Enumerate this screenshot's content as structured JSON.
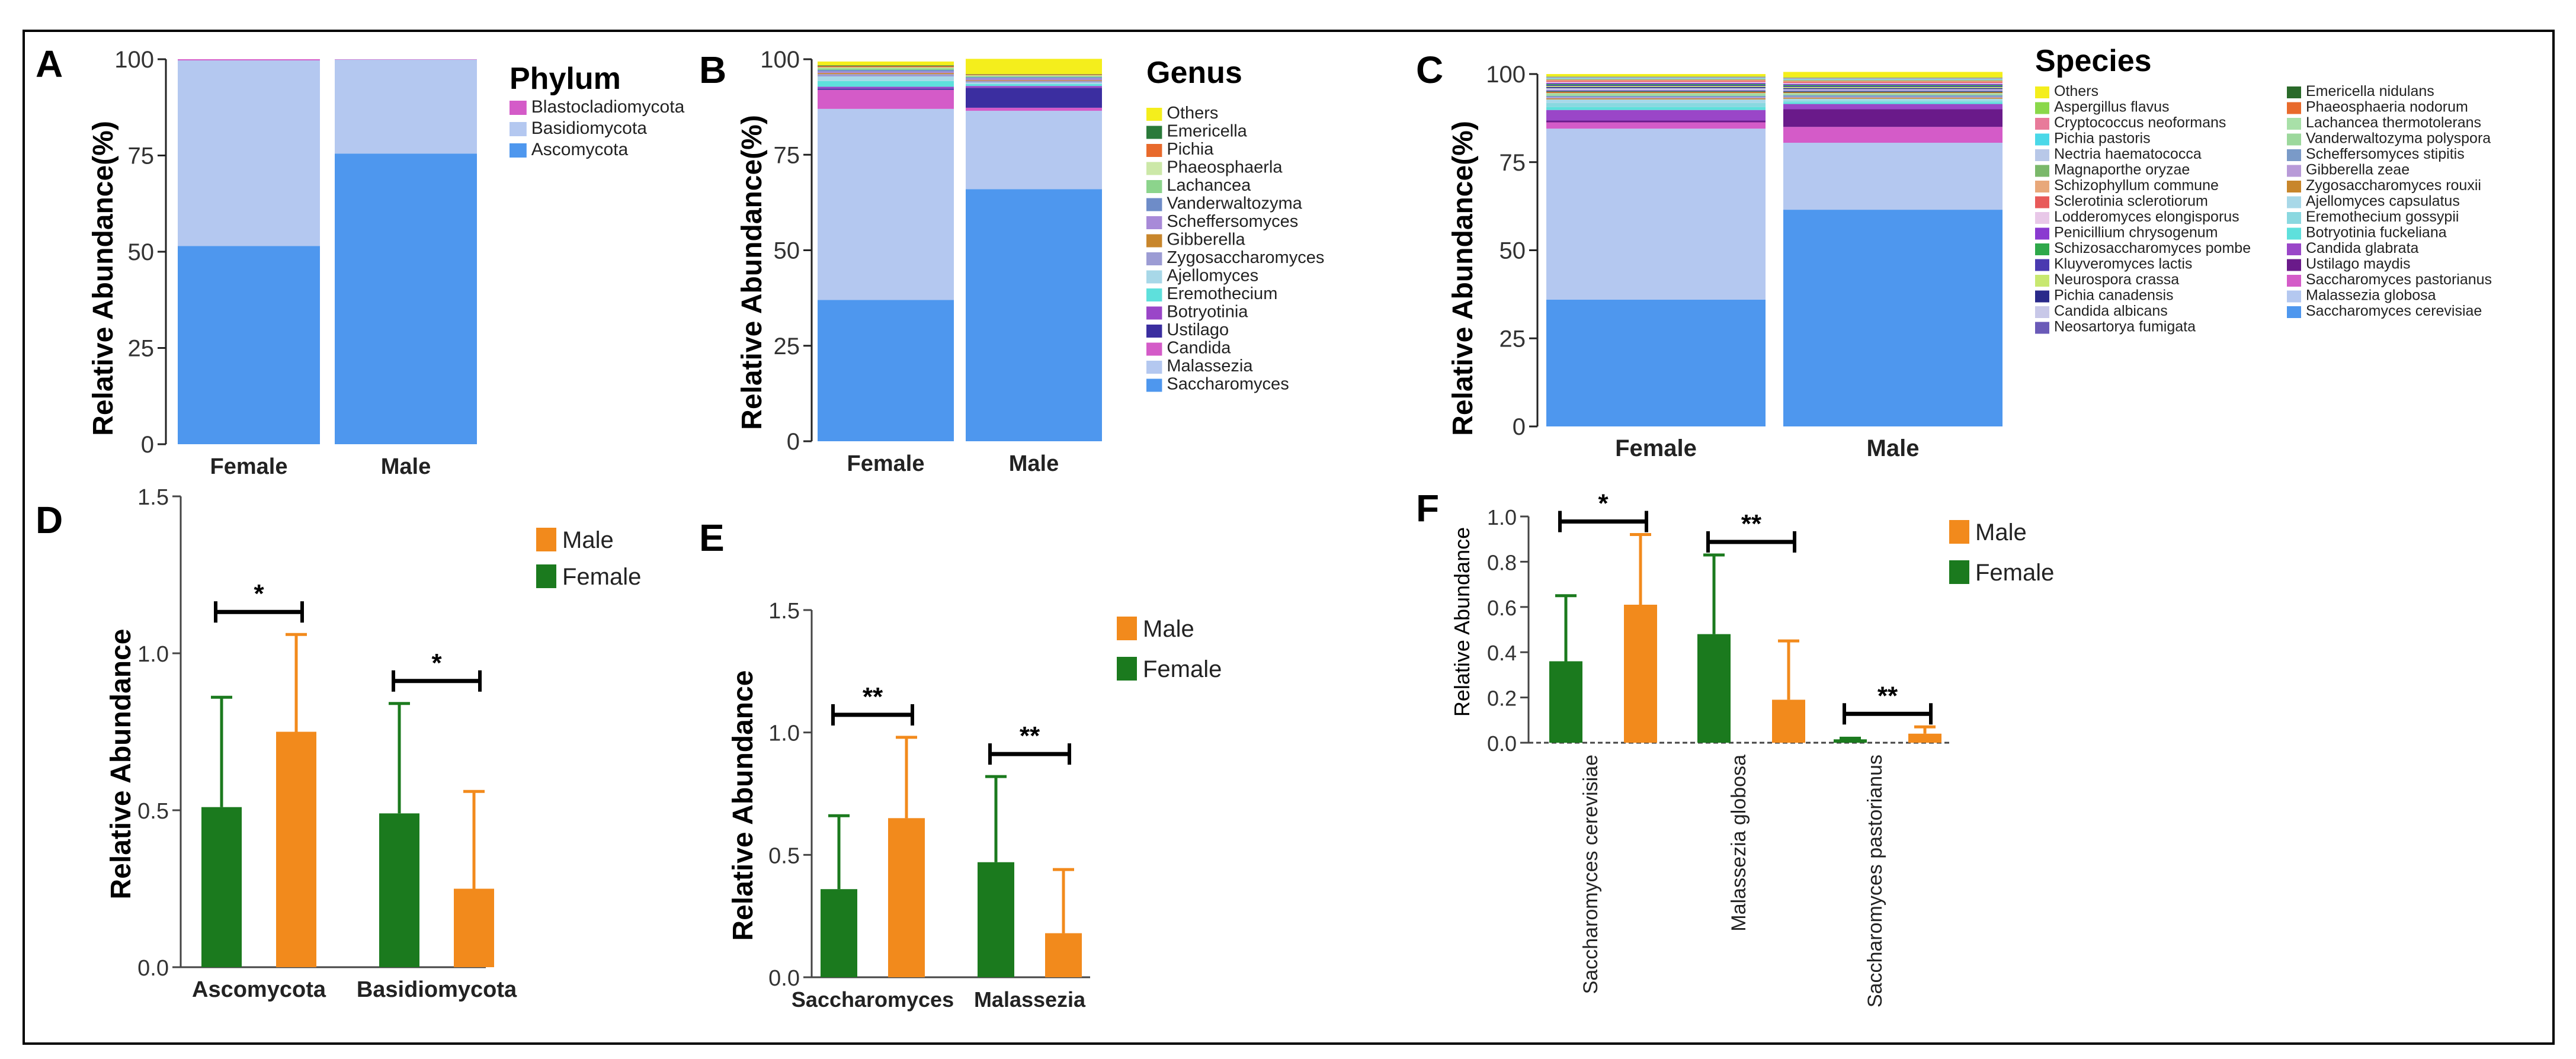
{
  "colors": {
    "female_bar": "#1b7a1e",
    "male_bar": "#f28a1c",
    "axis": "#000000"
  },
  "chart_data": [
    {
      "panel": "A",
      "type": "stacked_bar",
      "title": "Phylum",
      "ylabel": "Relative Abundance(%)",
      "yticks": [
        "0",
        "25",
        "50",
        "75",
        "100"
      ],
      "ylim": [
        0,
        100
      ],
      "categories": [
        "Female",
        "Male"
      ],
      "series": [
        {
          "name": "Ascomycota",
          "color": "#4e97ee",
          "values": [
            51.5,
            75.5
          ]
        },
        {
          "name": "Basidiomycota",
          "color": "#b4c8f0",
          "values": [
            48.2,
            24.4
          ]
        },
        {
          "name": "Blastocladiomycota",
          "color": "#d45bc8",
          "values": [
            0.3,
            0.1
          ]
        }
      ],
      "legend": [
        "Blastocladiomycota",
        "Basidiomycota",
        "Ascomycota"
      ]
    },
    {
      "panel": "B",
      "type": "stacked_bar",
      "title": "Genus",
      "ylabel": "Relative Abundance(%)",
      "yticks": [
        "0",
        "25",
        "50",
        "75",
        "100"
      ],
      "ylim": [
        0,
        100
      ],
      "categories": [
        "Female",
        "Male"
      ],
      "series": [
        {
          "name": "Saccharomyces",
          "color": "#4e97ee",
          "values": [
            37,
            66
          ]
        },
        {
          "name": "Malassezia",
          "color": "#b4c8f0",
          "values": [
            50,
            20.5
          ]
        },
        {
          "name": "Candida",
          "color": "#d45bc8",
          "values": [
            5,
            0.8
          ]
        },
        {
          "name": "Ustilago",
          "color": "#3b2ea0",
          "values": [
            0.3,
            5.2
          ]
        },
        {
          "name": "Botryotinia",
          "color": "#9a46c8",
          "values": [
            0.5,
            0.5
          ]
        },
        {
          "name": "Eremothecium",
          "color": "#5ee0dc",
          "values": [
            1.5,
            0.5
          ]
        },
        {
          "name": "Ajellomyces",
          "color": "#a8d8e8",
          "values": [
            1.2,
            0.4
          ]
        },
        {
          "name": "Zygosaccharomyces",
          "color": "#9c9cd4",
          "values": [
            0.6,
            0.4
          ]
        },
        {
          "name": "Gibberella",
          "color": "#c8862c",
          "values": [
            0.3,
            0.2
          ]
        },
        {
          "name": "Scheffersomyces",
          "color": "#a88ad8",
          "values": [
            0.4,
            0.5
          ]
        },
        {
          "name": "Vanderwaltozyma",
          "color": "#6e8cc8",
          "values": [
            0.4,
            0.3
          ]
        },
        {
          "name": "Lachancea",
          "color": "#8cd48c",
          "values": [
            0.4,
            0.3
          ]
        },
        {
          "name": "Phaeosphaerla",
          "color": "#cce8a8",
          "values": [
            0.3,
            0.2
          ]
        },
        {
          "name": "Pichia",
          "color": "#e86a2c",
          "values": [
            0.3,
            0.2
          ]
        },
        {
          "name": "Emericella",
          "color": "#2a7a3a",
          "values": [
            0.2,
            0.1
          ]
        },
        {
          "name": "Others",
          "color": "#f4ee1c",
          "values": [
            1.0,
            4.0
          ]
        }
      ],
      "legend": [
        "Others",
        "Emericella",
        "Pichia",
        "Phaeosphaerla",
        "Lachancea",
        "Vanderwaltozyma",
        "Scheffersomyces",
        "Gibberella",
        "Zygosaccharomyces",
        "Ajellomyces",
        "Eremothecium",
        "Botryotinia",
        "Ustilago",
        "Candida",
        "Malassezia",
        "Saccharomyces"
      ]
    },
    {
      "panel": "C",
      "type": "stacked_bar",
      "title": "Species",
      "ylabel": "Relative Abundance(%)",
      "yticks": [
        "0",
        "25",
        "50",
        "75",
        "100"
      ],
      "ylim": [
        0,
        100
      ],
      "categories": [
        "Female",
        "Male"
      ],
      "series": [
        {
          "name": "Saccharomyces cerevisiae",
          "color": "#4e97ee",
          "values": [
            36,
            61.5
          ]
        },
        {
          "name": "Malassezia globosa",
          "color": "#b4c8f0",
          "values": [
            48.5,
            19
          ]
        },
        {
          "name": "Saccharomyces pastorianus",
          "color": "#d45bc8",
          "values": [
            1.8,
            4.5
          ]
        },
        {
          "name": "Ustilago maydis",
          "color": "#6a1a8a",
          "values": [
            0.5,
            5
          ]
        },
        {
          "name": "Candida glabrata",
          "color": "#9a46c8",
          "values": [
            3,
            1.5
          ]
        },
        {
          "name": "Botryotinia fuckeliana",
          "color": "#5ee0dc",
          "values": [
            0.8,
            0.5
          ]
        },
        {
          "name": "Eremothecium gossypii",
          "color": "#8ad8e0",
          "values": [
            1.2,
            0.5
          ]
        },
        {
          "name": "Ajellomyces capsulatus",
          "color": "#a8d8e8",
          "values": [
            1.0,
            0.5
          ]
        },
        {
          "name": "Zygosaccharomyces rouxii",
          "color": "#c8862c",
          "values": [
            0.3,
            0.3
          ]
        },
        {
          "name": "Gibberella zeae",
          "color": "#b89ad8",
          "values": [
            0.3,
            0.2
          ]
        },
        {
          "name": "Scheffersomyces stipitis",
          "color": "#7a9ac8",
          "values": [
            0.4,
            0.5
          ]
        },
        {
          "name": "Vanderwaltozyma polyspora",
          "color": "#9cd89c",
          "values": [
            0.4,
            0.3
          ]
        },
        {
          "name": "Lachancea thermotolerans",
          "color": "#a8e0a8",
          "values": [
            0.4,
            0.3
          ]
        },
        {
          "name": "Phaeosphaeria nodorum",
          "color": "#e86a2c",
          "values": [
            0.3,
            0.2
          ]
        },
        {
          "name": "Emericella nidulans",
          "color": "#2a6a2a",
          "values": [
            0.2,
            0.2
          ]
        },
        {
          "name": "Neosartorya fumigata",
          "color": "#6a5ab8",
          "values": [
            0.3,
            0.3
          ]
        },
        {
          "name": "Candida albicans",
          "color": "#c8c8e8",
          "values": [
            0.6,
            0.4
          ]
        },
        {
          "name": "Pichia canadensis",
          "color": "#2a2a8a",
          "values": [
            0.3,
            0.3
          ]
        },
        {
          "name": "Neurospora crassa",
          "color": "#c8e870",
          "values": [
            0.3,
            0.3
          ]
        },
        {
          "name": "Kluyveromyces lactis",
          "color": "#4a3ab0",
          "values": [
            0.3,
            0.3
          ]
        },
        {
          "name": "Schizosaccharomyces pombe",
          "color": "#2ea84a",
          "values": [
            0.3,
            0.3
          ]
        },
        {
          "name": "Penicillium chrysogenum",
          "color": "#8a3ad0",
          "values": [
            0.3,
            0.3
          ]
        },
        {
          "name": "Lodderomyces elongisporus",
          "color": "#e8c8e8",
          "values": [
            0.3,
            0.3
          ]
        },
        {
          "name": "Sclerotinia sclerotiorum",
          "color": "#e85a5a",
          "values": [
            0.3,
            0.3
          ]
        },
        {
          "name": "Schizophyllum commune",
          "color": "#e8a87a",
          "values": [
            0.3,
            0.3
          ]
        },
        {
          "name": "Magnaporthe oryzae",
          "color": "#7ab86a",
          "values": [
            0.2,
            0.2
          ]
        },
        {
          "name": "Nectria haematococca",
          "color": "#b8c8e8",
          "values": [
            0.2,
            0.2
          ]
        },
        {
          "name": "Pichia pastoris",
          "color": "#4ad8e8",
          "values": [
            0.2,
            0.2
          ]
        },
        {
          "name": "Cryptococcus neoformans",
          "color": "#e87a9a",
          "values": [
            0.2,
            0.2
          ]
        },
        {
          "name": "Aspergillus flavus",
          "color": "#8ad84a",
          "values": [
            0.2,
            0.2
          ]
        },
        {
          "name": "Others",
          "color": "#f4ee1c",
          "values": [
            0.6,
            1.5
          ]
        }
      ],
      "legend_col1": [
        "Others",
        "Aspergillus flavus",
        "Cryptococcus neoformans",
        "Pichia pastoris",
        "Nectria haematococca",
        "Magnaporthe oryzae",
        "Schizophyllum commune",
        "Sclerotinia sclerotiorum",
        "Lodderomyces elongisporus",
        "Penicillium chrysogenum",
        "Schizosaccharomyces pombe",
        "Kluyveromyces lactis",
        "Neurospora crassa",
        "Pichia canadensis",
        "Candida albicans",
        "Neosartorya fumigata"
      ],
      "legend_col2": [
        "Emericella nidulans",
        "Phaeosphaeria nodorum",
        "Lachancea thermotolerans",
        "Vanderwaltozyma polyspora",
        "Scheffersomyces stipitis",
        "Gibberella zeae",
        "Zygosaccharomyces rouxii",
        "Ajellomyces capsulatus",
        "Eremothecium gossypii",
        "Botryotinia fuckeliana",
        "Candida glabrata",
        "Ustilago maydis",
        "Saccharomyces pastorianus",
        "Malassezia globosa",
        "Saccharomyces cerevisiae"
      ]
    },
    {
      "panel": "D",
      "type": "bar",
      "ylabel": "Relative Abundance",
      "yticks": [
        "0.0",
        "0.5",
        "1.0",
        "1.5"
      ],
      "ylim": [
        0,
        1.5
      ],
      "categories": [
        "Ascomycota",
        "Basidiomycota"
      ],
      "series": [
        {
          "name": "Female",
          "values": [
            0.51,
            0.49
          ],
          "errors": [
            0.35,
            0.35
          ]
        },
        {
          "name": "Male",
          "values": [
            0.75,
            0.25
          ],
          "errors": [
            0.31,
            0.31
          ]
        }
      ],
      "significance": [
        "*",
        "*"
      ],
      "legend": [
        "Male",
        "Female"
      ]
    },
    {
      "panel": "E",
      "type": "bar",
      "ylabel": "Relative Abundance",
      "yticks": [
        "0.0",
        "0.5",
        "1.0",
        "1.5"
      ],
      "ylim": [
        0,
        1.5
      ],
      "categories": [
        "Saccharomyces",
        "Malassezia"
      ],
      "series": [
        {
          "name": "Female",
          "values": [
            0.36,
            0.47
          ],
          "errors": [
            0.3,
            0.35
          ]
        },
        {
          "name": "Male",
          "values": [
            0.65,
            0.18
          ],
          "errors": [
            0.33,
            0.26
          ]
        }
      ],
      "significance": [
        "**",
        "**"
      ],
      "legend": [
        "Male",
        "Female"
      ]
    },
    {
      "panel": "F",
      "type": "bar",
      "ylabel": "Relative Abundance",
      "yticks": [
        "0.0",
        "0.2",
        "0.4",
        "0.6",
        "0.8",
        "1.0"
      ],
      "ylim": [
        0,
        1.0
      ],
      "categories": [
        "Saccharomyces cerevisiae",
        "Malassezia globosa",
        "Saccharomyces pastorianus"
      ],
      "series": [
        {
          "name": "Female",
          "values": [
            0.36,
            0.48,
            0.015
          ],
          "errors": [
            0.29,
            0.35,
            0.005
          ]
        },
        {
          "name": "Male",
          "values": [
            0.61,
            0.19,
            0.04
          ],
          "errors": [
            0.31,
            0.26,
            0.03
          ]
        }
      ],
      "significance": [
        "*",
        "**",
        "**"
      ],
      "legend": [
        "Male",
        "Female"
      ]
    }
  ]
}
